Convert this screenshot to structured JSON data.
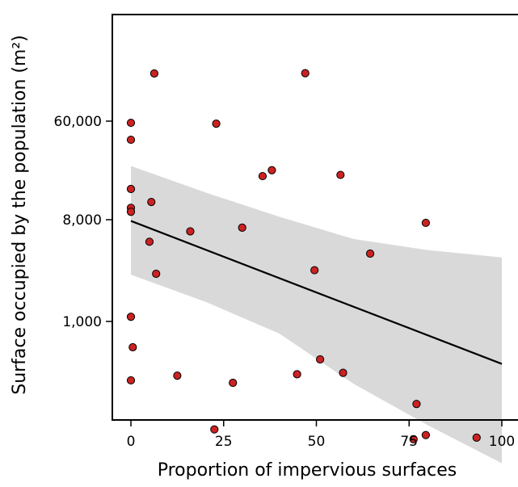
{
  "chart_data": {
    "type": "scatter",
    "title": "",
    "xlabel": "Proportion of  impervious surfaces",
    "ylabel": "Surface occupied by the population (m²)",
    "xlim": [
      -5,
      104
    ],
    "ylim_log10": [
      1.92,
      5.28
    ],
    "y_scale": "log",
    "x_ticks": [
      0,
      25,
      50,
      75,
      100
    ],
    "x_tick_labels": [
      "0",
      "25",
      "50",
      "75",
      "100"
    ],
    "y_ticks": [
      1000,
      8000,
      60000
    ],
    "y_tick_labels": [
      "1,000",
      "8,000",
      "60,000"
    ],
    "grid": false,
    "legend": "none",
    "point_color": "#cc2222",
    "band_color": "#d9d9d9",
    "line_color": "#000000",
    "points": [
      {
        "x": 6.3,
        "y": 159000
      },
      {
        "x": 47,
        "y": 160000
      },
      {
        "x": 0,
        "y": 58000
      },
      {
        "x": 23,
        "y": 57000
      },
      {
        "x": 0,
        "y": 41000
      },
      {
        "x": 38,
        "y": 22000
      },
      {
        "x": 35.5,
        "y": 19500
      },
      {
        "x": 56.5,
        "y": 20000
      },
      {
        "x": 0,
        "y": 15000
      },
      {
        "x": 5.5,
        "y": 11500
      },
      {
        "x": 0,
        "y": 10200
      },
      {
        "x": 0,
        "y": 9400
      },
      {
        "x": 79.5,
        "y": 7500
      },
      {
        "x": 30,
        "y": 6800
      },
      {
        "x": 16,
        "y": 6300
      },
      {
        "x": 5,
        "y": 5100
      },
      {
        "x": 64.5,
        "y": 4000
      },
      {
        "x": 49.5,
        "y": 2850
      },
      {
        "x": 6.8,
        "y": 2650
      },
      {
        "x": 0,
        "y": 1100
      },
      {
        "x": 0.5,
        "y": 590
      },
      {
        "x": 51,
        "y": 460
      },
      {
        "x": 57.2,
        "y": 350
      },
      {
        "x": 44.8,
        "y": 340
      },
      {
        "x": 12.5,
        "y": 330
      },
      {
        "x": 0,
        "y": 300
      },
      {
        "x": 27.5,
        "y": 285
      },
      {
        "x": 77,
        "y": 185
      },
      {
        "x": 22.5,
        "y": 110
      },
      {
        "x": 79.5,
        "y": 98
      },
      {
        "x": 93.2,
        "y": 93
      },
      {
        "x": 76.2,
        "y": 90
      }
    ],
    "regression_line": {
      "x": [
        0,
        100
      ],
      "y": [
        7800,
        420
      ]
    },
    "confidence_band": {
      "x": [
        0,
        20,
        40,
        60,
        80,
        100
      ],
      "upper": [
        24000,
        14000,
        8500,
        5400,
        4300,
        3700
      ],
      "lower": [
        2600,
        1500,
        780,
        280,
        120,
        55
      ]
    }
  }
}
